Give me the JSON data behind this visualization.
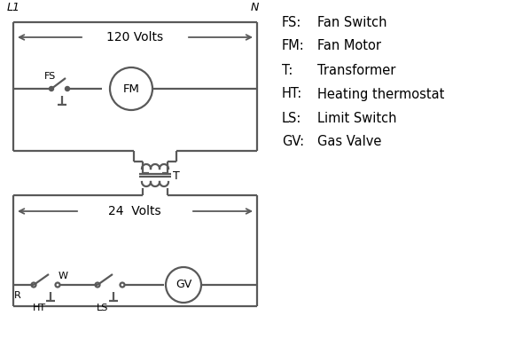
{
  "bg_color": "#ffffff",
  "line_color": "#595959",
  "text_color": "#000000",
  "legend_items": [
    [
      "FS:",
      "Fan Switch"
    ],
    [
      "FM:",
      "Fan Motor"
    ],
    [
      "T:",
      "Transformer"
    ],
    [
      "HT:",
      "Heating thermostat"
    ],
    [
      "LS:",
      "Limit Switch"
    ],
    [
      "GV:",
      "Gas Valve"
    ]
  ],
  "label_L1": "L1",
  "label_N": "N",
  "label_120V": "120 Volts",
  "label_24V": "24  Volts",
  "label_T": "T",
  "label_FS": "FS",
  "label_FM": "FM",
  "label_GV": "GV",
  "label_R": "R",
  "label_W": "W",
  "label_HT": "HT",
  "label_LS": "LS"
}
